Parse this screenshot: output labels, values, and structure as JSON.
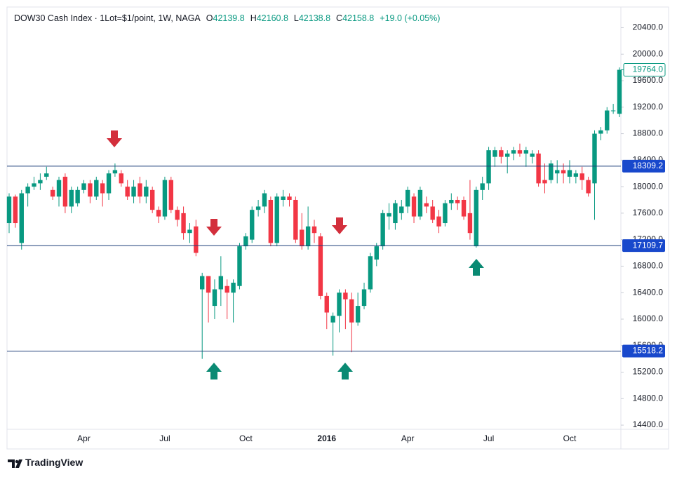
{
  "header": {
    "symbol": "DOW30 Cash Index · 1Lot=$1/point, 1W, NAGA",
    "ohlc": [
      {
        "key": "O",
        "value": "42139.8"
      },
      {
        "key": "H",
        "value": "42160.8"
      },
      {
        "key": "L",
        "value": "42138.8"
      },
      {
        "key": "C",
        "value": "42158.8"
      }
    ],
    "change": "+19.0 (+0.05%)"
  },
  "branding": "TradingView",
  "chart_data": {
    "type": "candlestick",
    "categories": [
      null,
      null,
      null,
      null,
      null,
      null,
      null,
      null,
      null,
      null,
      null,
      null,
      "Apr",
      null,
      null,
      null,
      null,
      null,
      null,
      null,
      null,
      null,
      null,
      null,
      null,
      "Jul",
      null,
      null,
      null,
      null,
      null,
      null,
      null,
      null,
      null,
      null,
      null,
      null,
      "Oct",
      null,
      null,
      null,
      null,
      null,
      null,
      null,
      null,
      null,
      null,
      null,
      null,
      "2016",
      null,
      null,
      null,
      null,
      null,
      null,
      null,
      null,
      null,
      null,
      null,
      null,
      "Apr",
      null,
      null,
      null,
      null,
      null,
      null,
      null,
      null,
      null,
      null,
      null,
      null,
      "Jul",
      null,
      null,
      null,
      null,
      null,
      null,
      null,
      null,
      null,
      null,
      null,
      null,
      "Oct",
      null,
      null,
      null,
      null,
      null,
      null,
      null,
      null
    ],
    "open": [
      17450,
      17850,
      17150,
      17900,
      18000,
      18050,
      18150,
      17950,
      17850,
      18150,
      17700,
      17750,
      17950,
      18050,
      17850,
      18050,
      17900,
      18200,
      18200,
      18000,
      17850,
      18050,
      17850,
      17950,
      17650,
      17550,
      18100,
      17650,
      17600,
      17300,
      17400,
      16450,
      16650,
      16200,
      16450,
      16500,
      16400,
      16500,
      17100,
      17200,
      17650,
      17700,
      17800,
      17150,
      17800,
      17850,
      17800,
      17350,
      17100,
      17400,
      17250,
      16350,
      15950,
      16050,
      16400,
      16300,
      15950,
      16200,
      16450,
      16900,
      17100,
      17550,
      17450,
      17600,
      17700,
      17850,
      17550,
      17750,
      17700,
      17550,
      17450,
      17750,
      17800,
      17800,
      17600,
      17100,
      17950,
      18050,
      18450,
      18550,
      18450,
      18500,
      18550,
      18500,
      18450,
      18500,
      18100,
      18100,
      18200,
      18250,
      18150,
      18150,
      18200,
      18100,
      18050,
      18800,
      18850,
      19150,
      19100
    ],
    "high": [
      17900,
      17880,
      17950,
      18050,
      18150,
      18200,
      18300,
      18000,
      18150,
      18200,
      18000,
      18000,
      18100,
      18100,
      18150,
      18100,
      18250,
      18350,
      18250,
      18100,
      18100,
      18150,
      18100,
      18000,
      17700,
      18150,
      18150,
      17700,
      17700,
      17450,
      17500,
      16700,
      16650,
      16600,
      16950,
      16600,
      16600,
      17150,
      17300,
      17700,
      17800,
      17950,
      17850,
      17900,
      17950,
      17900,
      17850,
      17600,
      17700,
      17500,
      17300,
      16400,
      16100,
      16450,
      16450,
      16400,
      16400,
      16550,
      17000,
      17150,
      17650,
      17750,
      17800,
      17800,
      18000,
      17900,
      18000,
      17850,
      17800,
      17650,
      17800,
      17900,
      17850,
      17850,
      18100,
      18000,
      18150,
      18600,
      18600,
      18600,
      18550,
      18600,
      18650,
      18600,
      18550,
      18550,
      18350,
      18400,
      18400,
      18350,
      18400,
      18250,
      18300,
      18150,
      18850,
      18900,
      19200,
      19250,
      19800
    ],
    "low": [
      17300,
      17380,
      17050,
      17700,
      17950,
      17950,
      18100,
      17800,
      17700,
      17600,
      17600,
      17700,
      17900,
      17750,
      17800,
      17700,
      17800,
      18150,
      18000,
      17800,
      17750,
      17750,
      17750,
      17600,
      17450,
      17500,
      17600,
      17400,
      17200,
      17150,
      16950,
      15400,
      15950,
      16000,
      16200,
      16000,
      15950,
      16450,
      17050,
      17150,
      17550,
      17600,
      17100,
      17100,
      17700,
      17700,
      17150,
      17050,
      17050,
      17150,
      16300,
      15850,
      15450,
      15800,
      15850,
      15500,
      15900,
      16150,
      16400,
      16800,
      17050,
      17350,
      17350,
      17500,
      17600,
      17450,
      17500,
      17600,
      17450,
      17300,
      17400,
      17650,
      17650,
      17500,
      17200,
      17080,
      17800,
      17950,
      18300,
      18350,
      18200,
      18400,
      18450,
      18300,
      18350,
      18000,
      17900,
      18050,
      18050,
      18050,
      18050,
      18050,
      17950,
      17850,
      17500,
      18700,
      18800,
      19100,
      19050
    ],
    "close": [
      17850,
      17450,
      17900,
      18000,
      18050,
      18100,
      18200,
      17850,
      18100,
      17700,
      17950,
      17950,
      18050,
      17850,
      18100,
      17900,
      18200,
      18250,
      18050,
      17850,
      18000,
      17850,
      18000,
      17650,
      17550,
      18100,
      17650,
      17500,
      17300,
      17350,
      17000,
      16650,
      16400,
      16450,
      16650,
      16400,
      16550,
      17100,
      17250,
      17650,
      17700,
      17900,
      17150,
      17850,
      17850,
      17800,
      17200,
      17100,
      17400,
      17300,
      16350,
      16100,
      16050,
      16400,
      16300,
      15950,
      16200,
      16450,
      16950,
      17100,
      17600,
      17600,
      17750,
      17700,
      17950,
      17550,
      17950,
      17700,
      17500,
      17400,
      17750,
      17800,
      17750,
      17550,
      17300,
      17950,
      18050,
      18550,
      18550,
      18450,
      18500,
      18550,
      18500,
      18550,
      18500,
      18050,
      18050,
      18350,
      18250,
      18200,
      18250,
      18200,
      18100,
      17900,
      18800,
      18850,
      19150,
      19150,
      19764
    ],
    "up_color": "#089981",
    "down_color": "#f23645",
    "ylim": [
      14337,
      20712
    ],
    "yticks": [
      {
        "value": 14400,
        "label": "14400.0"
      },
      {
        "value": 14800,
        "label": "14800.0"
      },
      {
        "value": 15200,
        "label": "15200.0"
      },
      {
        "value": 15600,
        "label": "15600.0"
      },
      {
        "value": 16000,
        "label": "16000.0"
      },
      {
        "value": 16400,
        "label": "16400.0"
      },
      {
        "value": 16800,
        "label": "16800.0"
      },
      {
        "value": 17200,
        "label": "17200.0"
      },
      {
        "value": 17600,
        "label": "17600.0"
      },
      {
        "value": 18000,
        "label": "18000.0"
      },
      {
        "value": 18400,
        "label": "18400.0"
      },
      {
        "value": 18800,
        "label": "18800.0"
      },
      {
        "value": 19200,
        "label": "19200.0"
      },
      {
        "value": 19600,
        "label": "19600.0"
      },
      {
        "value": 20000,
        "label": "20000.0"
      },
      {
        "value": 20400,
        "label": "20400.0"
      }
    ],
    "grid": false,
    "levels": [
      18309.2,
      17109.7,
      15518.2
    ],
    "level_color": "#1e3f7a",
    "last_price": {
      "value": 19764,
      "label": "19764.0"
    }
  }
}
